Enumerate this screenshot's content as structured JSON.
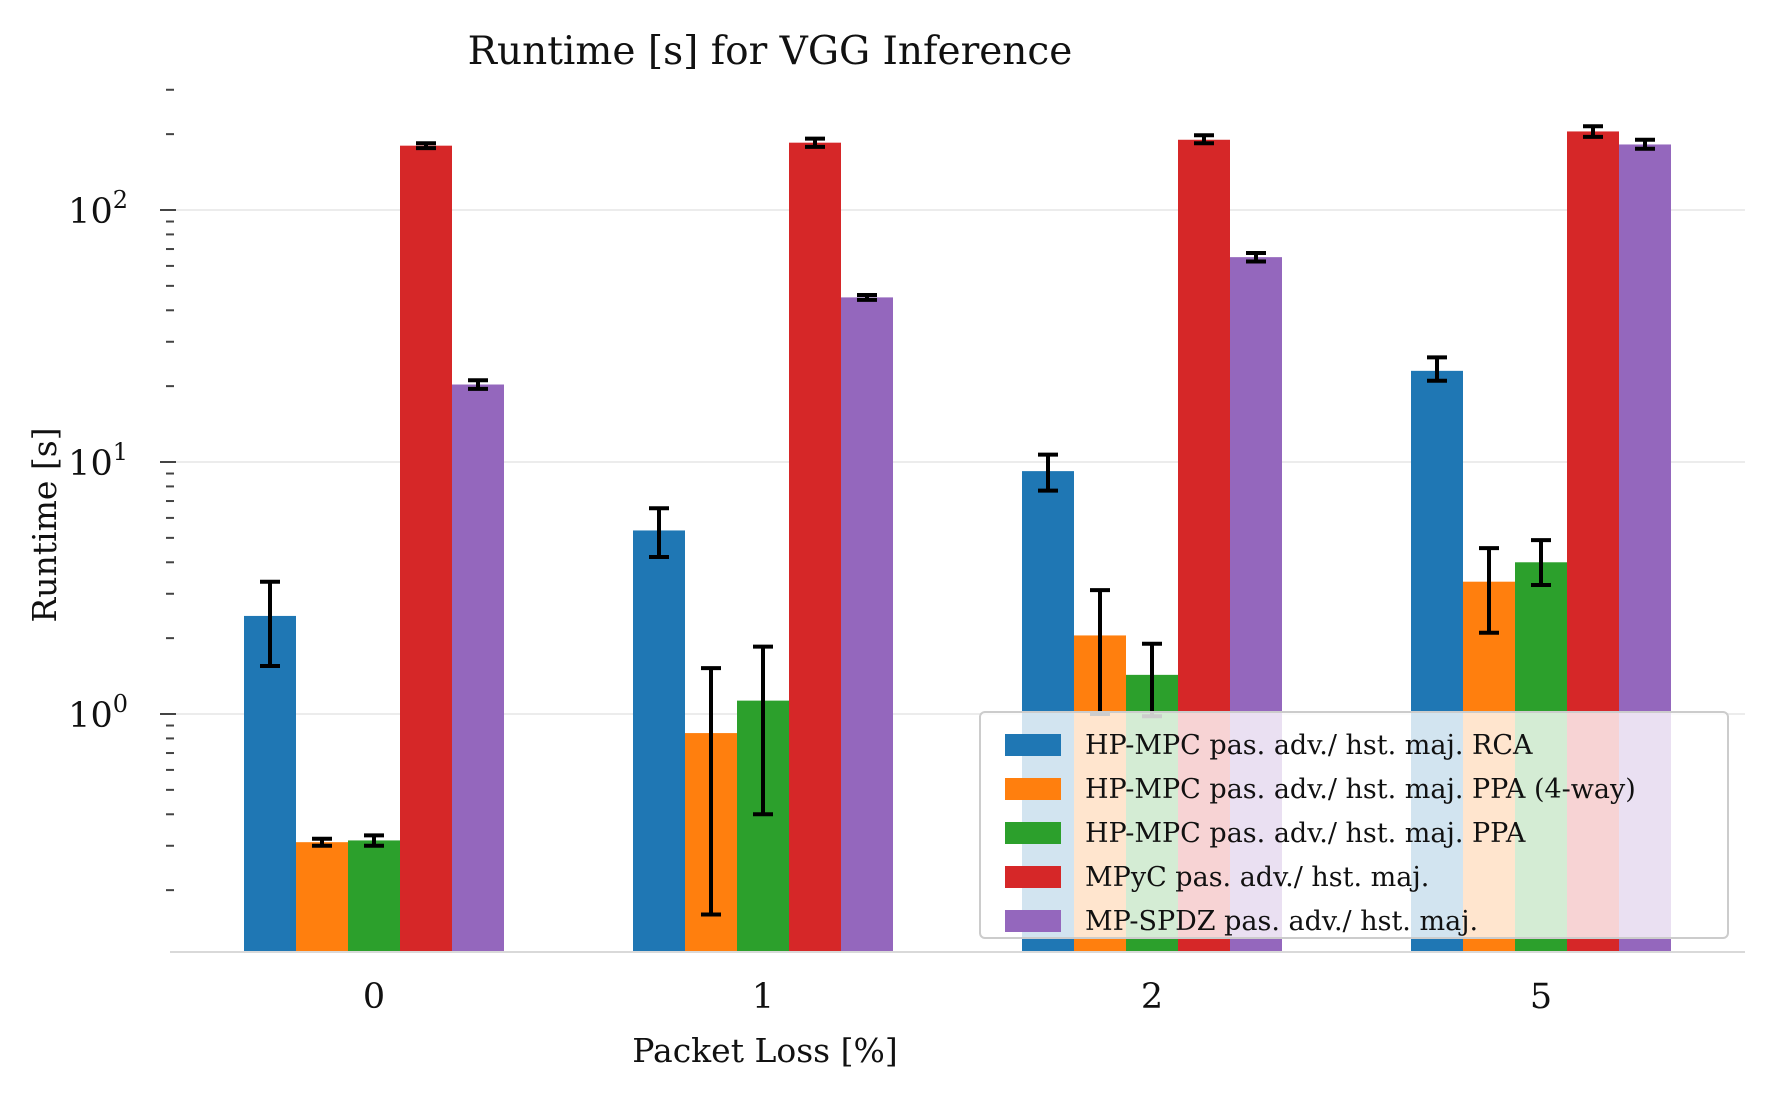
{
  "chart_data": {
    "type": "bar",
    "title": "Runtime [s] for VGG Inference",
    "xlabel": "Packet Loss [%]",
    "ylabel": "Runtime [s]",
    "yscale": "log",
    "ylim": [
      0.115,
      320
    ],
    "yticks": [
      {
        "value": 1,
        "label": "10",
        "exp": "0"
      },
      {
        "value": 10,
        "label": "10",
        "exp": "1"
      },
      {
        "value": 100,
        "label": "10",
        "exp": "2"
      }
    ],
    "categories": [
      "0",
      "1",
      "2",
      "5"
    ],
    "grid": "horizontal major lines",
    "legend_position": "lower-right",
    "series": [
      {
        "name": "HP-MPC pas. adv./ hst. maj. RCA",
        "color": "#1f77b4",
        "values": [
          2.45,
          5.35,
          9.2,
          23.0
        ],
        "err_low": [
          1.55,
          4.2,
          7.7,
          21.0
        ],
        "err_high": [
          3.35,
          6.55,
          10.7,
          26.0
        ]
      },
      {
        "name": "HP-MPC pas. adv./ hst. maj. PPA (4-way)",
        "color": "#ff7f0e",
        "values": [
          0.31,
          0.84,
          2.05,
          3.35
        ],
        "err_low": [
          0.3,
          0.16,
          1.0,
          2.1
        ],
        "err_high": [
          0.32,
          1.52,
          3.1,
          4.55
        ]
      },
      {
        "name": "HP-MPC pas. adv./ hst. maj. PPA",
        "color": "#2ca02c",
        "values": [
          0.315,
          1.13,
          1.43,
          4.0
        ],
        "err_low": [
          0.3,
          0.4,
          0.98,
          3.25
        ],
        "err_high": [
          0.33,
          1.85,
          1.9,
          4.9
        ]
      },
      {
        "name": "MPyC pas. adv./ hst. maj.",
        "color": "#d62728",
        "values": [
          180,
          185,
          190,
          205
        ],
        "err_low": [
          176,
          178,
          184,
          195
        ],
        "err_high": [
          184,
          192,
          198,
          215
        ]
      },
      {
        "name": "MP-SPDZ pas. adv./ hst. maj.",
        "color": "#9467bd",
        "values": [
          20.3,
          45.0,
          65.0,
          182
        ],
        "err_low": [
          19.5,
          44.0,
          62.5,
          175
        ],
        "err_high": [
          21.1,
          46.0,
          67.5,
          190
        ]
      }
    ]
  }
}
